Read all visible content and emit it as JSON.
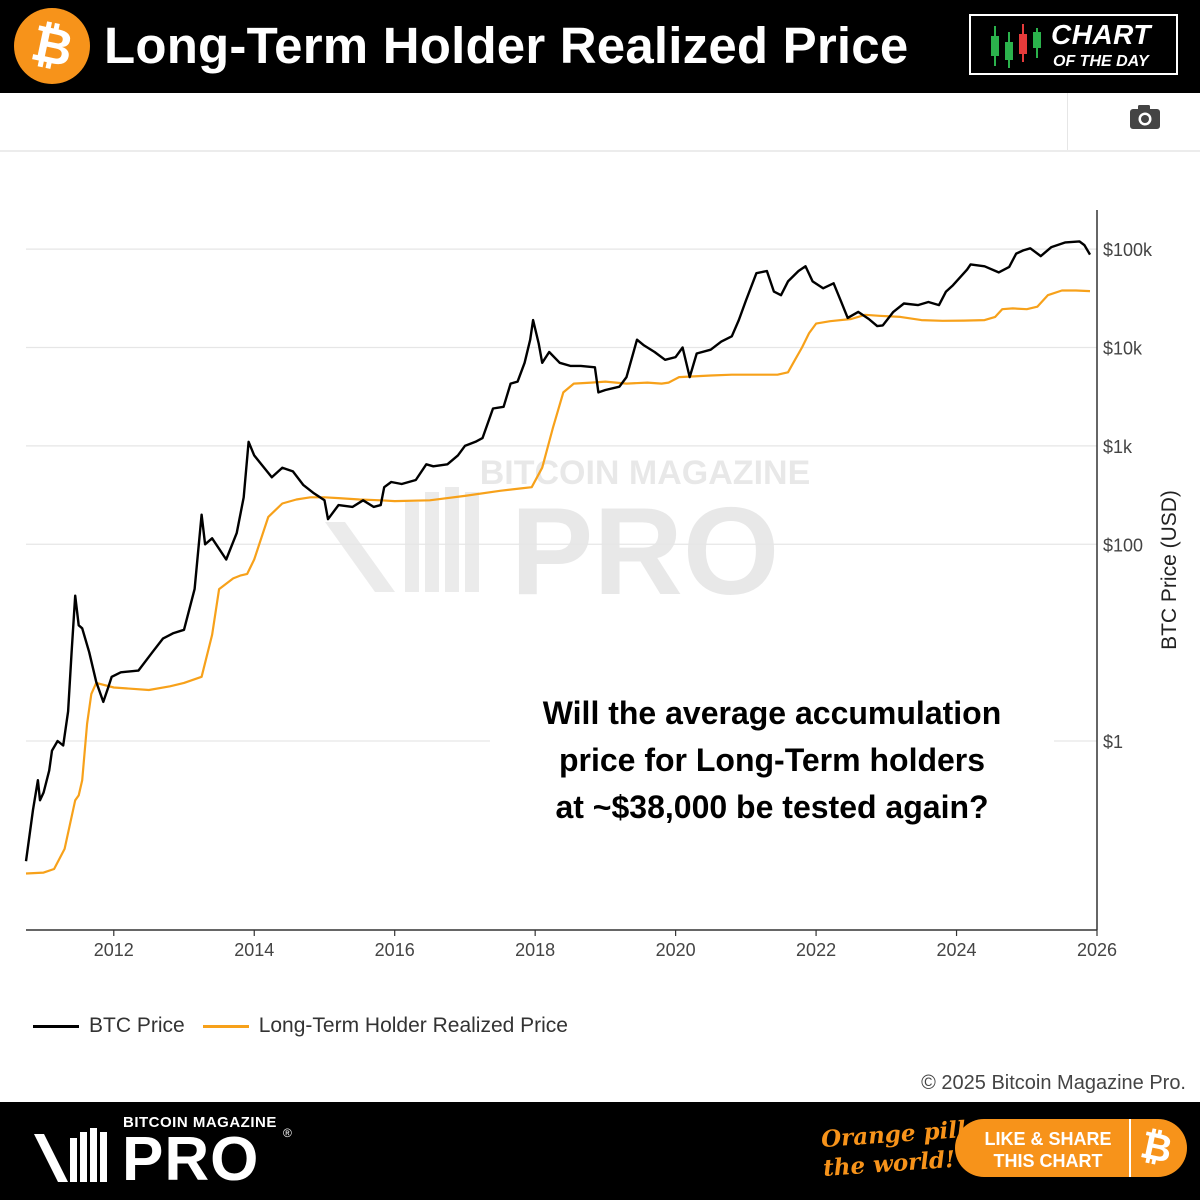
{
  "header": {
    "title": "Long-Term Holder Realized Price",
    "logo_symbol": "₿",
    "badge_top": "CHART",
    "badge_bottom": "OF THE DAY"
  },
  "toolbar": {
    "camera_icon": "camera-icon"
  },
  "annotation": {
    "lines": [
      "Will the average accumulation",
      "price for Long-Term holders",
      "at ~$38,000 be tested again?"
    ]
  },
  "watermark": {
    "top": "BITCOIN MAGAZINE",
    "bottom": "PRO"
  },
  "copyright": "© 2025 Bitcoin Magazine Pro.",
  "footer": {
    "brand_small": "BITCOIN MAGAZINE",
    "brand_big": "PRO",
    "reg_mark": "®",
    "tagline_1": "Orange pill",
    "tagline_2": "the world!",
    "share_line1": "LIKE & SHARE",
    "share_line2": "THIS CHART",
    "share_symbol": "₿"
  },
  "colors": {
    "btc": "#000000",
    "lthrp": "#f7a11a",
    "brand_orange": "#f7931a"
  },
  "chart_data": {
    "type": "line",
    "title": "Long-Term Holder Realized Price",
    "xlabel": "",
    "ylabel": "BTC Price (USD)",
    "y_scale": "log",
    "xlim": [
      2010.75,
      2026.0
    ],
    "ylim": [
      0.012,
      250000
    ],
    "x_ticks": [
      2012,
      2014,
      2016,
      2018,
      2020,
      2022,
      2024,
      2026
    ],
    "x_tick_labels": [
      "2012",
      "2014",
      "2016",
      "2018",
      "2020",
      "2022",
      "2024",
      "2026"
    ],
    "y_ticks": [
      1,
      100,
      1000,
      10000,
      100000
    ],
    "y_tick_labels": [
      "$1",
      "$100",
      "$1k",
      "$10k",
      "$100k"
    ],
    "legend_position": "bottom-left",
    "series": [
      {
        "name": "BTC Price",
        "color": "#000000",
        "points": [
          [
            2010.75,
            0.06
          ],
          [
            2010.85,
            0.2
          ],
          [
            2010.92,
            0.4
          ],
          [
            2010.95,
            0.25
          ],
          [
            2011.0,
            0.3
          ],
          [
            2011.08,
            0.5
          ],
          [
            2011.12,
            0.8
          ],
          [
            2011.2,
            1.0
          ],
          [
            2011.28,
            0.9
          ],
          [
            2011.35,
            2.0
          ],
          [
            2011.4,
            8.0
          ],
          [
            2011.45,
            30.0
          ],
          [
            2011.5,
            15.0
          ],
          [
            2011.55,
            14.0
          ],
          [
            2011.65,
            8.0
          ],
          [
            2011.75,
            4.0
          ],
          [
            2011.85,
            2.5
          ],
          [
            2011.92,
            3.5
          ],
          [
            2011.97,
            4.5
          ],
          [
            2012.1,
            5.0
          ],
          [
            2012.35,
            5.2
          ],
          [
            2012.55,
            8.0
          ],
          [
            2012.7,
            11.0
          ],
          [
            2012.85,
            12.5
          ],
          [
            2013.0,
            13.5
          ],
          [
            2013.15,
            35.0
          ],
          [
            2013.25,
            200.0
          ],
          [
            2013.3,
            100.0
          ],
          [
            2013.4,
            115.0
          ],
          [
            2013.5,
            90.0
          ],
          [
            2013.6,
            70.0
          ],
          [
            2013.75,
            130.0
          ],
          [
            2013.85,
            300.0
          ],
          [
            2013.92,
            1100.0
          ],
          [
            2014.0,
            800.0
          ],
          [
            2014.1,
            650.0
          ],
          [
            2014.25,
            480.0
          ],
          [
            2014.4,
            600.0
          ],
          [
            2014.55,
            550.0
          ],
          [
            2014.7,
            400.0
          ],
          [
            2014.85,
            330.0
          ],
          [
            2015.0,
            280.0
          ],
          [
            2015.05,
            180.0
          ],
          [
            2015.2,
            250.0
          ],
          [
            2015.4,
            240.0
          ],
          [
            2015.55,
            280.0
          ],
          [
            2015.7,
            240.0
          ],
          [
            2015.8,
            250.0
          ],
          [
            2015.85,
            380.0
          ],
          [
            2015.95,
            430.0
          ],
          [
            2016.1,
            410.0
          ],
          [
            2016.3,
            450.0
          ],
          [
            2016.45,
            650.0
          ],
          [
            2016.55,
            620.0
          ],
          [
            2016.75,
            650.0
          ],
          [
            2016.9,
            800.0
          ],
          [
            2017.0,
            1000.0
          ],
          [
            2017.15,
            1100.0
          ],
          [
            2017.25,
            1200.0
          ],
          [
            2017.4,
            2400.0
          ],
          [
            2017.55,
            2500.0
          ],
          [
            2017.65,
            4300.0
          ],
          [
            2017.75,
            4500.0
          ],
          [
            2017.85,
            7000.0
          ],
          [
            2017.93,
            12000.0
          ],
          [
            2017.97,
            19000.0
          ],
          [
            2018.05,
            11000.0
          ],
          [
            2018.1,
            7000.0
          ],
          [
            2018.2,
            9000.0
          ],
          [
            2018.35,
            7000.0
          ],
          [
            2018.5,
            6500.0
          ],
          [
            2018.65,
            6500.0
          ],
          [
            2018.85,
            6300.0
          ],
          [
            2018.9,
            3500.0
          ],
          [
            2019.0,
            3700.0
          ],
          [
            2019.2,
            4000.0
          ],
          [
            2019.3,
            5000.0
          ],
          [
            2019.45,
            12000.0
          ],
          [
            2019.55,
            10500.0
          ],
          [
            2019.7,
            9000.0
          ],
          [
            2019.85,
            7500.0
          ],
          [
            2020.0,
            8000.0
          ],
          [
            2020.1,
            10000.0
          ],
          [
            2020.2,
            5000.0
          ],
          [
            2020.3,
            8700.0
          ],
          [
            2020.5,
            9500.0
          ],
          [
            2020.65,
            11500.0
          ],
          [
            2020.8,
            13000.0
          ],
          [
            2020.9,
            19000.0
          ],
          [
            2021.0,
            30000.0
          ],
          [
            2021.15,
            57000.0
          ],
          [
            2021.3,
            60000.0
          ],
          [
            2021.4,
            37000.0
          ],
          [
            2021.5,
            34000.0
          ],
          [
            2021.6,
            47000.0
          ],
          [
            2021.75,
            60000.0
          ],
          [
            2021.85,
            67000.0
          ],
          [
            2021.95,
            47000.0
          ],
          [
            2022.1,
            40000.0
          ],
          [
            2022.25,
            45000.0
          ],
          [
            2022.35,
            30000.0
          ],
          [
            2022.45,
            20000.0
          ],
          [
            2022.6,
            23000.0
          ],
          [
            2022.75,
            19500.0
          ],
          [
            2022.87,
            16500.0
          ],
          [
            2022.95,
            16800.0
          ],
          [
            2023.1,
            23000.0
          ],
          [
            2023.25,
            28000.0
          ],
          [
            2023.45,
            27000.0
          ],
          [
            2023.6,
            29000.0
          ],
          [
            2023.75,
            27000.0
          ],
          [
            2023.85,
            37000.0
          ],
          [
            2023.95,
            43000.0
          ],
          [
            2024.15,
            62000.0
          ],
          [
            2024.2,
            70000.0
          ],
          [
            2024.4,
            67000.0
          ],
          [
            2024.6,
            58000.0
          ],
          [
            2024.75,
            66000.0
          ],
          [
            2024.85,
            90000.0
          ],
          [
            2024.95,
            97000.0
          ],
          [
            2025.05,
            102000.0
          ],
          [
            2025.2,
            85000.0
          ],
          [
            2025.35,
            105000.0
          ],
          [
            2025.55,
            117000.0
          ],
          [
            2025.75,
            120000.0
          ],
          [
            2025.82,
            110000.0
          ],
          [
            2025.9,
            88000.0
          ]
        ]
      },
      {
        "name": "Long-Term Holder Realized Price",
        "color": "#f7a11a",
        "points": [
          [
            2010.75,
            0.045
          ],
          [
            2011.0,
            0.046
          ],
          [
            2011.15,
            0.05
          ],
          [
            2011.3,
            0.08
          ],
          [
            2011.45,
            0.25
          ],
          [
            2011.5,
            0.28
          ],
          [
            2011.55,
            0.4
          ],
          [
            2011.62,
            1.5
          ],
          [
            2011.68,
            3.0
          ],
          [
            2011.75,
            3.9
          ],
          [
            2012.0,
            3.5
          ],
          [
            2012.5,
            3.3
          ],
          [
            2012.8,
            3.6
          ],
          [
            2013.0,
            3.9
          ],
          [
            2013.25,
            4.5
          ],
          [
            2013.4,
            12.0
          ],
          [
            2013.5,
            35.0
          ],
          [
            2013.7,
            45.0
          ],
          [
            2013.8,
            48.0
          ],
          [
            2013.9,
            50.0
          ],
          [
            2014.0,
            70.0
          ],
          [
            2014.2,
            190.0
          ],
          [
            2014.4,
            260.0
          ],
          [
            2014.6,
            285.0
          ],
          [
            2014.8,
            300.0
          ],
          [
            2015.0,
            300.0
          ],
          [
            2015.2,
            295.0
          ],
          [
            2015.5,
            285.0
          ],
          [
            2015.8,
            280.0
          ],
          [
            2016.0,
            275.0
          ],
          [
            2016.5,
            280.0
          ],
          [
            2017.0,
            310.0
          ],
          [
            2017.5,
            350.0
          ],
          [
            2017.8,
            370.0
          ],
          [
            2017.95,
            380.0
          ],
          [
            2018.1,
            600.0
          ],
          [
            2018.25,
            1500.0
          ],
          [
            2018.4,
            3500.0
          ],
          [
            2018.55,
            4300.0
          ],
          [
            2018.8,
            4400.0
          ],
          [
            2019.0,
            4500.0
          ],
          [
            2019.3,
            4300.0
          ],
          [
            2019.6,
            4400.0
          ],
          [
            2019.8,
            4300.0
          ],
          [
            2019.9,
            4400.0
          ],
          [
            2020.05,
            5000.0
          ],
          [
            2020.5,
            5200.0
          ],
          [
            2020.8,
            5300.0
          ],
          [
            2021.0,
            5300.0
          ],
          [
            2021.2,
            5300.0
          ],
          [
            2021.45,
            5300.0
          ],
          [
            2021.6,
            5600.0
          ],
          [
            2021.7,
            7500.0
          ],
          [
            2021.8,
            10000.0
          ],
          [
            2021.9,
            14000.0
          ],
          [
            2022.0,
            17500.0
          ],
          [
            2022.2,
            18500.0
          ],
          [
            2022.5,
            19500.0
          ],
          [
            2022.7,
            21500.0
          ],
          [
            2022.9,
            21000.0
          ],
          [
            2023.2,
            20500.0
          ],
          [
            2023.5,
            19000.0
          ],
          [
            2023.8,
            18700.0
          ],
          [
            2024.1,
            18800.0
          ],
          [
            2024.4,
            19000.0
          ],
          [
            2024.55,
            20500.0
          ],
          [
            2024.65,
            24500.0
          ],
          [
            2024.8,
            25000.0
          ],
          [
            2025.0,
            24500.0
          ],
          [
            2025.15,
            26000.0
          ],
          [
            2025.3,
            34000.0
          ],
          [
            2025.5,
            38000.0
          ],
          [
            2025.7,
            38000.0
          ],
          [
            2025.9,
            37500.0
          ]
        ]
      }
    ]
  }
}
